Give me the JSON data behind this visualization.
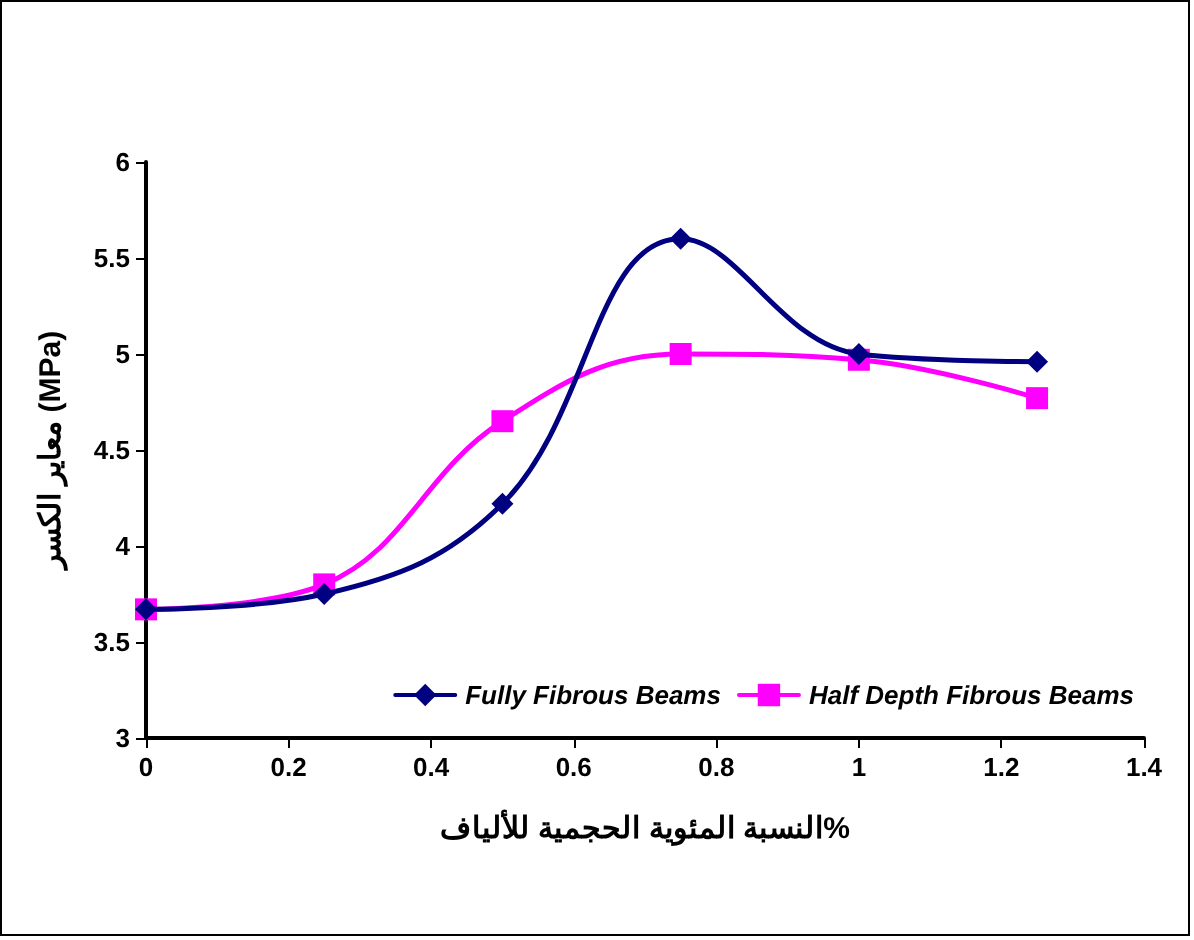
{
  "chart_data": {
    "type": "line",
    "xlabel": "النسبة المئوية الحجمية للألياف%",
    "ylabel": "معاير الكسر (MPa)",
    "x": [
      0,
      0.25,
      0.5,
      0.75,
      1.0,
      1.25
    ],
    "series": [
      {
        "name": "Fully Fibrous Beams",
        "color": "#000080",
        "marker": "diamond",
        "values": [
          3.67,
          3.75,
          4.22,
          5.6,
          5.0,
          4.96
        ]
      },
      {
        "name": "Half Depth Fibrous Beams",
        "color": "#ff00ff",
        "marker": "square",
        "values": [
          3.67,
          3.8,
          4.65,
          5.0,
          4.97,
          4.77
        ]
      }
    ],
    "xlim": [
      0,
      1.4
    ],
    "xticks": [
      0,
      0.2,
      0.4,
      0.6,
      0.8,
      1,
      1.2,
      1.4
    ],
    "ylim": [
      3,
      6
    ],
    "yticks": [
      3,
      3.5,
      4,
      4.5,
      5,
      5.5,
      6
    ],
    "grid": false,
    "legend": "bottom right",
    "line_style": "solid"
  }
}
